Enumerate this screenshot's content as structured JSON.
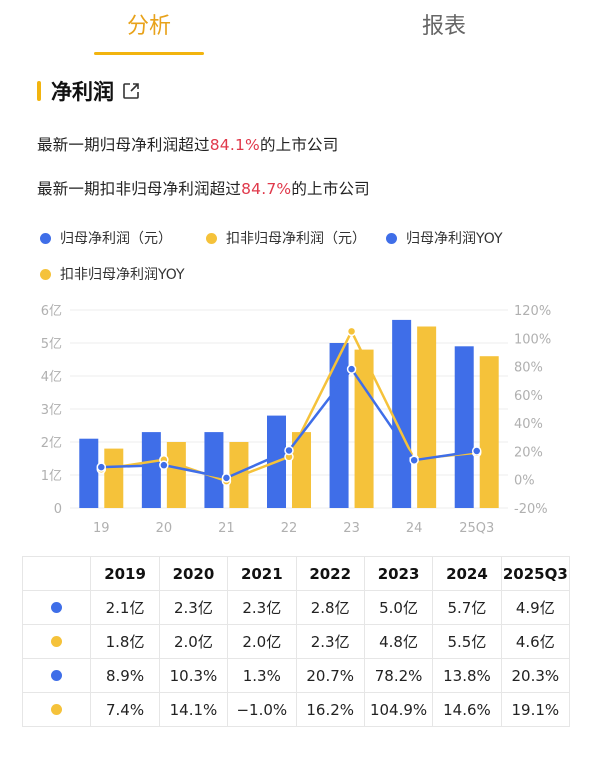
{
  "tabs": [
    {
      "label": "分析",
      "active": true
    },
    {
      "label": "报表",
      "active": false
    }
  ],
  "section": {
    "title": "净利润"
  },
  "stats": [
    {
      "prefix": "最新一期归母净利润超过",
      "value": "84.1%",
      "suffix": "的上市公司"
    },
    {
      "prefix": "最新一期扣非归母净利润超过",
      "value": "84.7%",
      "suffix": "的上市公司"
    }
  ],
  "colors": {
    "blue": "#3f6ee8",
    "yellow": "#f5c23a",
    "accent": "#f2b40f",
    "highlight": "#e0394b"
  },
  "chart_data": {
    "type": "bar",
    "categories": [
      "19",
      "20",
      "21",
      "22",
      "23",
      "24",
      "25Q3"
    ],
    "series": [
      {
        "name": "归母净利润（元）",
        "kind": "bar",
        "axis": "left",
        "color": "#3f6ee8",
        "values": [
          2.1,
          2.3,
          2.3,
          2.8,
          5.0,
          5.7,
          4.9
        ]
      },
      {
        "name": "扣非归母净利润（元）",
        "kind": "bar",
        "axis": "left",
        "color": "#f5c23a",
        "values": [
          1.8,
          2.0,
          2.0,
          2.3,
          4.8,
          5.5,
          4.6
        ]
      },
      {
        "name": "归母净利润YOY",
        "kind": "line",
        "axis": "right",
        "color": "#3f6ee8",
        "values": [
          8.9,
          10.3,
          1.3,
          20.7,
          78.2,
          13.8,
          20.3
        ]
      },
      {
        "name": "扣非归母净利润YOY",
        "kind": "line",
        "axis": "right",
        "color": "#f5c23a",
        "values": [
          7.4,
          14.1,
          -1.0,
          16.2,
          104.9,
          14.6,
          19.1
        ]
      }
    ],
    "y_left": {
      "range": [
        0,
        6
      ],
      "ticks": [
        "0",
        "1亿",
        "2亿",
        "3亿",
        "4亿",
        "5亿",
        "6亿"
      ]
    },
    "y_right": {
      "range": [
        -20,
        120
      ],
      "ticks": [
        "-20%",
        "0%",
        "20%",
        "40%",
        "60%",
        "80%",
        "100%",
        "120%"
      ]
    },
    "grid": true,
    "legend": "top"
  },
  "table": {
    "headers": [
      "2019",
      "2020",
      "2021",
      "2022",
      "2023",
      "2024",
      "2025Q3"
    ],
    "rows": [
      {
        "color": "#3f6ee8",
        "cells": [
          "2.1亿",
          "2.3亿",
          "2.3亿",
          "2.8亿",
          "5.0亿",
          "5.7亿",
          "4.9亿"
        ]
      },
      {
        "color": "#f5c23a",
        "cells": [
          "1.8亿",
          "2.0亿",
          "2.0亿",
          "2.3亿",
          "4.8亿",
          "5.5亿",
          "4.6亿"
        ]
      },
      {
        "color": "#3f6ee8",
        "cells": [
          "8.9%",
          "10.3%",
          "1.3%",
          "20.7%",
          "78.2%",
          "13.8%",
          "20.3%"
        ]
      },
      {
        "color": "#f5c23a",
        "cells": [
          "7.4%",
          "14.1%",
          "−1.0%",
          "16.2%",
          "104.9%",
          "14.6%",
          "19.1%"
        ]
      }
    ]
  }
}
